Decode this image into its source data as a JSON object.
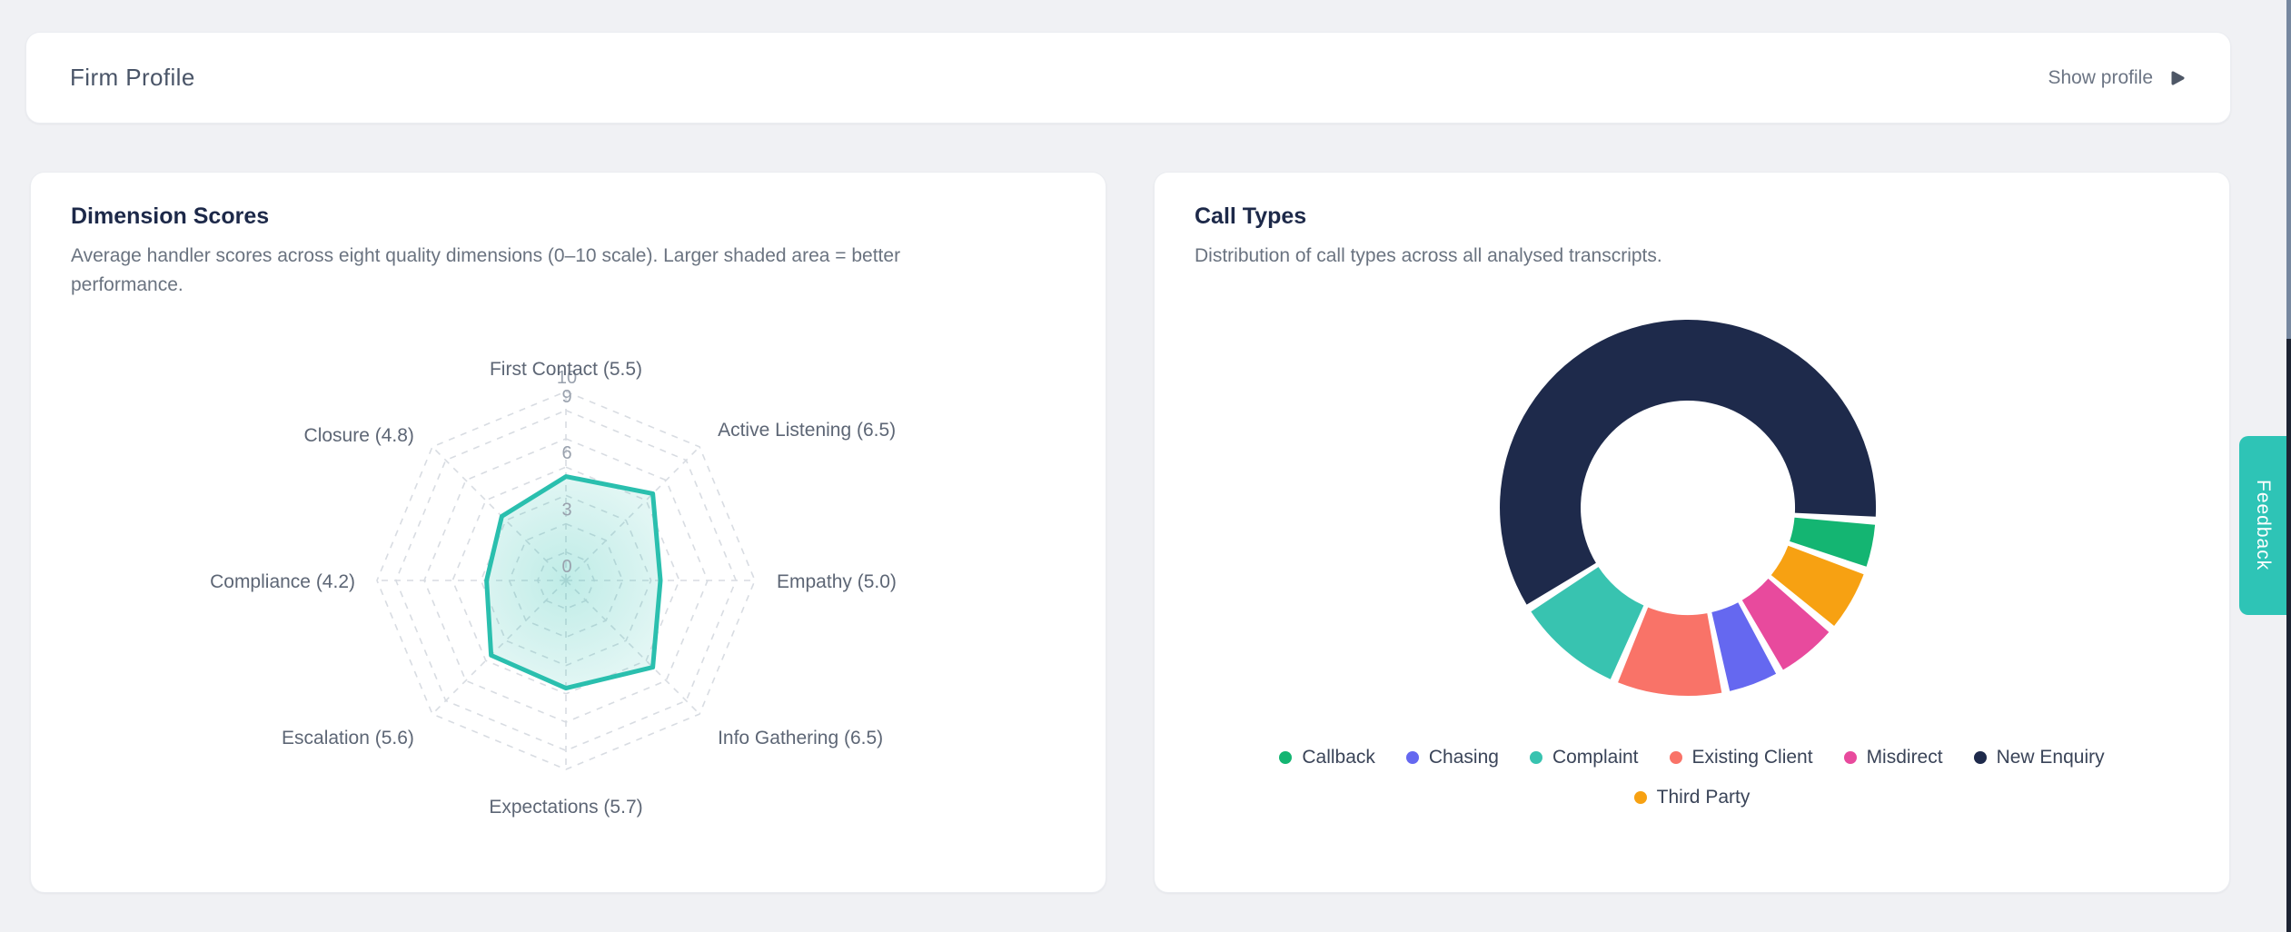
{
  "page": {
    "background_color": "#f0f1f4",
    "card_background_color": "#ffffff",
    "accent_color": "#2ec4b6"
  },
  "topbar": {
    "title": "Firm Profile",
    "action_label": "Show profile"
  },
  "feedback_tab": {
    "label": "Feedback",
    "color": "#2ec4b6"
  },
  "cards": {
    "dimension_scores": {
      "title": "Dimension Scores",
      "description": "Average handler scores across eight quality dimensions (0–10 scale). Larger shaded area = better performance."
    },
    "call_types": {
      "title": "Call Types",
      "description": "Distribution of call types across all analysed transcripts."
    }
  },
  "chart_data": [
    {
      "type": "radar",
      "title": "Dimension Scores",
      "axes": [
        "First Contact",
        "Active Listening",
        "Empathy",
        "Info Gathering",
        "Expectations",
        "Escalation",
        "Compliance",
        "Closure"
      ],
      "values": [
        5.5,
        6.5,
        5.0,
        6.5,
        5.7,
        5.6,
        4.2,
        4.8
      ],
      "axis_labels": [
        "First Contact (5.5)",
        "Active Listening (6.5)",
        "Empathy (5.0)",
        "Info Gathering (6.5)",
        "Expectations (5.7)",
        "Escalation (5.6)",
        "Compliance (4.2)",
        "Closure (4.8)"
      ],
      "scale": {
        "min": 0,
        "max": 10,
        "tick_labels": [
          0,
          3,
          6,
          9,
          10
        ],
        "ring_values": [
          1.5,
          3,
          4.5,
          6,
          7.5,
          9,
          10
        ]
      },
      "grid": "dashed-octagon",
      "colors": {
        "stroke": "#2abfae",
        "grid": "#d8dce2",
        "tick_text": "#99a1ad",
        "label_text": "#5d6675"
      }
    },
    {
      "type": "donut",
      "title": "Call Types",
      "segments": [
        {
          "label": "New Enquiry",
          "pct": 62.4,
          "color": "#1e2a4b"
        },
        {
          "label": "Callback",
          "pct": 3.8,
          "color": "#14b572"
        },
        {
          "label": "Third Party",
          "pct": 5.3,
          "color": "#f7a112"
        },
        {
          "label": "Misdirect",
          "pct": 5.3,
          "color": "#e84a9d"
        },
        {
          "label": "Chasing",
          "pct": 4.4,
          "color": "#6568f0"
        },
        {
          "label": "Existing Client",
          "pct": 9.4,
          "color": "#f97368"
        },
        {
          "label": "Complaint",
          "pct": 9.4,
          "color": "#38c3b0"
        }
      ],
      "start_angle_deg": -121,
      "pad_angle_deg": 2.5,
      "inner_radius_ratio": 0.57,
      "legend_position": "bottom",
      "legend_rows": [
        [
          "Callback",
          "Chasing",
          "Complaint",
          "Existing Client",
          "Misdirect",
          "New Enquiry"
        ],
        [
          "Third Party"
        ]
      ],
      "colors": {
        "Callback": "#14b572",
        "Chasing": "#6568f0",
        "Complaint": "#38c3b0",
        "Existing Client": "#f97368",
        "Misdirect": "#e84a9d",
        "New Enquiry": "#1e2a4b",
        "Third Party": "#f7a112"
      }
    }
  ]
}
